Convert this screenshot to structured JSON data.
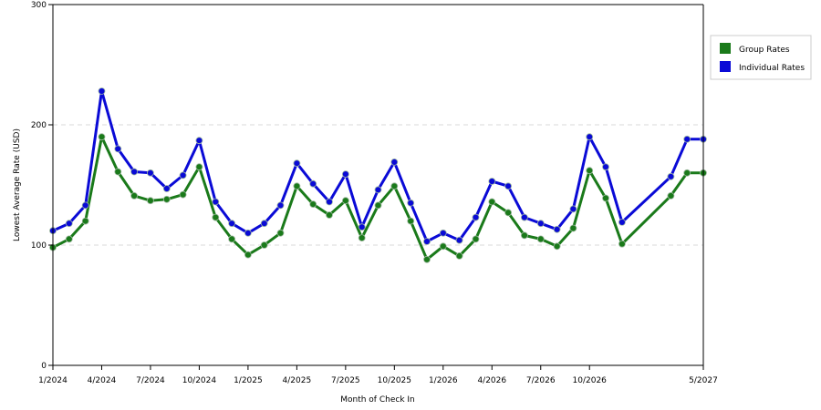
{
  "chart_data": {
    "type": "line",
    "xlabel": "Month of Check In",
    "ylabel": "Lowest Average Rate (USD)",
    "ylim": [
      0,
      300
    ],
    "yticks": [
      "0",
      "100",
      "200",
      "300"
    ],
    "x": [
      "1/2024",
      "2/2024",
      "3/2024",
      "4/2024",
      "5/2024",
      "6/2024",
      "7/2024",
      "8/2024",
      "9/2024",
      "10/2024",
      "11/2024",
      "12/2024",
      "1/2025",
      "2/2025",
      "3/2025",
      "4/2025",
      "5/2025",
      "6/2025",
      "7/2025",
      "8/2025",
      "9/2025",
      "10/2025",
      "11/2025",
      "12/2025",
      "1/2026",
      "2/2026",
      "3/2026",
      "4/2026",
      "5/2026",
      "6/2026",
      "7/2026",
      "8/2026",
      "9/2026",
      "10/2026",
      "11/2026",
      "12/2026",
      "3/2027",
      "4/2027",
      "5/2027"
    ],
    "xticks": [
      "1/2024",
      "4/2024",
      "7/2024",
      "10/2024",
      "1/2025",
      "4/2025",
      "7/2025",
      "10/2025",
      "1/2026",
      "4/2026",
      "7/2026",
      "10/2026",
      "5/2027"
    ],
    "grid": true,
    "legend_position": "right",
    "series": [
      {
        "name": "Group Rates",
        "color": "#1a7a1a",
        "values": [
          98,
          105,
          120,
          190,
          161,
          141,
          137,
          138,
          142,
          165,
          123,
          105,
          92,
          100,
          110,
          149,
          134,
          125,
          137,
          106,
          133,
          149,
          120,
          88,
          99,
          91,
          105,
          136,
          127,
          108,
          105,
          99,
          114,
          162,
          139,
          101,
          141,
          160,
          160
        ]
      },
      {
        "name": "Individual Rates",
        "color": "#0a0ad6",
        "values": [
          112,
          118,
          133,
          228,
          180,
          161,
          160,
          147,
          158,
          187,
          136,
          118,
          110,
          118,
          133,
          168,
          151,
          136,
          159,
          115,
          146,
          169,
          135,
          103,
          110,
          104,
          123,
          153,
          149,
          123,
          118,
          113,
          130,
          190,
          165,
          119,
          157,
          188,
          188
        ]
      }
    ]
  }
}
